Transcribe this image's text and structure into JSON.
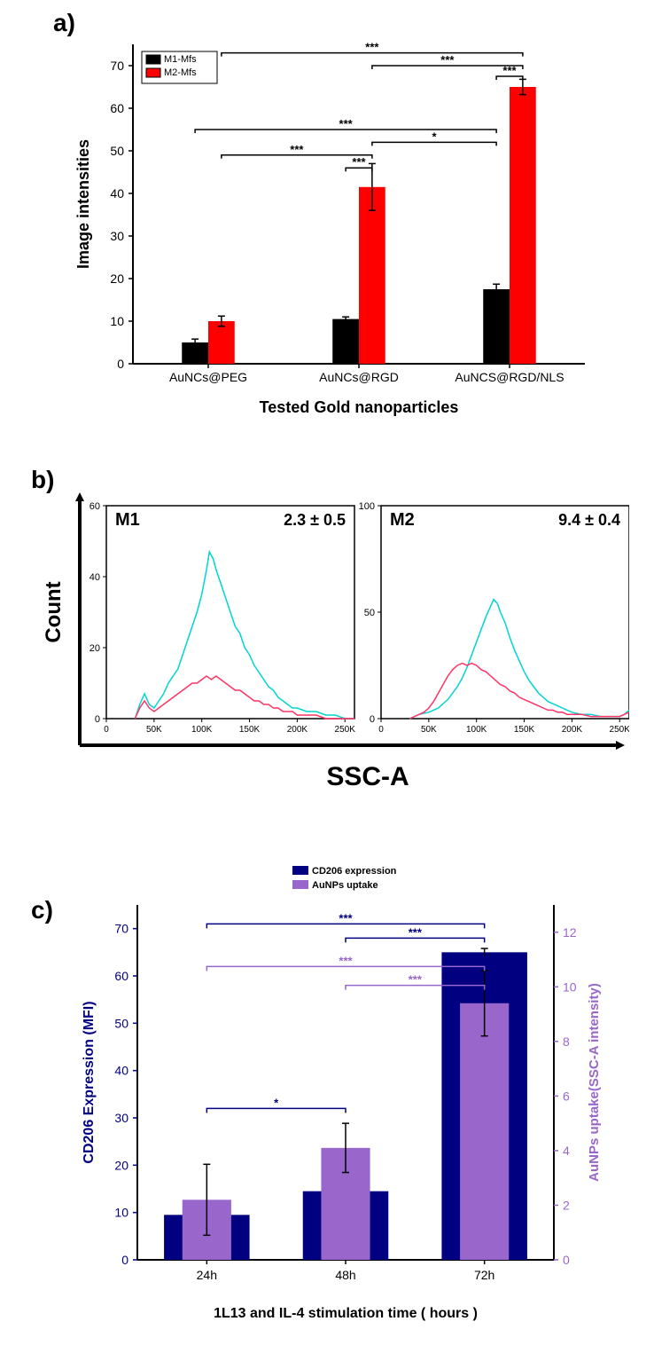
{
  "panels": {
    "a": {
      "label": "a)"
    },
    "b": {
      "label": "b)"
    },
    "c": {
      "label": "c)"
    }
  },
  "chartA": {
    "type": "bar",
    "ylabel": "Image intensities",
    "xlabel": "Tested Gold nanoparticles",
    "categories": [
      "AuNCs@PEG",
      "AuNCs@RGD",
      "AuNCS@RGD/NLS"
    ],
    "series": [
      {
        "name": "M1-Mfs",
        "color": "#000000",
        "values": [
          5,
          10.5,
          17.5
        ],
        "errors": [
          0.8,
          0.5,
          1.2
        ]
      },
      {
        "name": "M2-Mfs",
        "color": "#ff0000",
        "values": [
          10,
          41.5,
          65
        ],
        "errors": [
          1.2,
          5.5,
          1.8
        ]
      }
    ],
    "ylim": [
      0,
      75
    ],
    "ytick_step": 10,
    "bar_width": 0.35,
    "significance": [
      {
        "from": 0,
        "fromSeries": 1,
        "to": 2,
        "toSeries": 1,
        "label": "***",
        "y": 73
      },
      {
        "from": 1,
        "fromSeries": 1,
        "to": 2,
        "toSeries": 1,
        "label": "***",
        "y": 70
      },
      {
        "from": 2,
        "fromSeries": 0,
        "to": 2,
        "toSeries": 1,
        "label": "***",
        "y": 67.5
      },
      {
        "from": 0,
        "fromSeries": 0,
        "to": 2,
        "toSeries": 0,
        "label": "***",
        "y": 55
      },
      {
        "from": 1,
        "fromSeries": 1,
        "to": 2,
        "toSeries": 0,
        "label": "*",
        "y": 52
      },
      {
        "from": 0,
        "fromSeries": 1,
        "to": 1,
        "toSeries": 1,
        "label": "***",
        "y": 49
      },
      {
        "from": 1,
        "fromSeries": 0,
        "to": 1,
        "toSeries": 1,
        "label": "***",
        "y": 46
      }
    ]
  },
  "chartB": {
    "ylabel": "Count",
    "xlabel": "SSC-A",
    "subplots": [
      {
        "title": "M1",
        "stat": "2.3 ± 0.5",
        "xlim": [
          0,
          260
        ],
        "ylim": [
          0,
          60
        ],
        "xticks": [
          0,
          50,
          100,
          150,
          200,
          250
        ],
        "xtickLabels": [
          "0",
          "50K",
          "100K",
          "150K",
          "200K",
          "250K"
        ],
        "yticks": [
          0,
          20,
          40,
          60
        ],
        "lines": [
          {
            "color": "#00d4d4",
            "data": [
              [
                30,
                0
              ],
              [
                35,
                4
              ],
              [
                40,
                7
              ],
              [
                45,
                4
              ],
              [
                50,
                3
              ],
              [
                55,
                5
              ],
              [
                60,
                7
              ],
              [
                65,
                10
              ],
              [
                70,
                12
              ],
              [
                75,
                14
              ],
              [
                80,
                18
              ],
              [
                85,
                22
              ],
              [
                90,
                26
              ],
              [
                95,
                30
              ],
              [
                100,
                35
              ],
              [
                105,
                42
              ],
              [
                108,
                47
              ],
              [
                112,
                45
              ],
              [
                115,
                42
              ],
              [
                120,
                38
              ],
              [
                125,
                34
              ],
              [
                130,
                30
              ],
              [
                135,
                26
              ],
              [
                140,
                24
              ],
              [
                145,
                20
              ],
              [
                150,
                18
              ],
              [
                155,
                15
              ],
              [
                160,
                13
              ],
              [
                165,
                11
              ],
              [
                170,
                9
              ],
              [
                175,
                8
              ],
              [
                180,
                6
              ],
              [
                185,
                5
              ],
              [
                190,
                4
              ],
              [
                195,
                3
              ],
              [
                200,
                3
              ],
              [
                210,
                2
              ],
              [
                220,
                2
              ],
              [
                230,
                1
              ],
              [
                240,
                1
              ],
              [
                250,
                0
              ],
              [
                260,
                0
              ]
            ]
          },
          {
            "color": "#ff3366",
            "data": [
              [
                30,
                0
              ],
              [
                35,
                3
              ],
              [
                40,
                5
              ],
              [
                45,
                3
              ],
              [
                50,
                2
              ],
              [
                55,
                3
              ],
              [
                60,
                4
              ],
              [
                65,
                5
              ],
              [
                70,
                6
              ],
              [
                75,
                7
              ],
              [
                80,
                8
              ],
              [
                85,
                9
              ],
              [
                90,
                10
              ],
              [
                95,
                10
              ],
              [
                100,
                11
              ],
              [
                105,
                12
              ],
              [
                110,
                11
              ],
              [
                115,
                12
              ],
              [
                120,
                11
              ],
              [
                125,
                10
              ],
              [
                130,
                9
              ],
              [
                135,
                8
              ],
              [
                140,
                8
              ],
              [
                145,
                7
              ],
              [
                150,
                6
              ],
              [
                155,
                5
              ],
              [
                160,
                5
              ],
              [
                165,
                4
              ],
              [
                170,
                4
              ],
              [
                175,
                3
              ],
              [
                180,
                3
              ],
              [
                185,
                2
              ],
              [
                190,
                2
              ],
              [
                195,
                2
              ],
              [
                200,
                1
              ],
              [
                210,
                1
              ],
              [
                220,
                1
              ],
              [
                230,
                0
              ],
              [
                240,
                0
              ],
              [
                250,
                0
              ],
              [
                260,
                0
              ]
            ]
          }
        ]
      },
      {
        "title": "M2",
        "stat": "9.4 ± 0.4",
        "xlim": [
          0,
          260
        ],
        "ylim": [
          0,
          100
        ],
        "xticks": [
          0,
          50,
          100,
          150,
          200,
          250
        ],
        "xtickLabels": [
          "0",
          "50K",
          "100K",
          "150K",
          "200K",
          "250K"
        ],
        "yticks": [
          0,
          50,
          100
        ],
        "lines": [
          {
            "color": "#00d4d4",
            "data": [
              [
                30,
                0
              ],
              [
                40,
                2
              ],
              [
                50,
                3
              ],
              [
                55,
                4
              ],
              [
                60,
                5
              ],
              [
                65,
                7
              ],
              [
                70,
                9
              ],
              [
                75,
                12
              ],
              [
                80,
                15
              ],
              [
                85,
                19
              ],
              [
                90,
                24
              ],
              [
                95,
                30
              ],
              [
                100,
                36
              ],
              [
                105,
                42
              ],
              [
                110,
                48
              ],
              [
                115,
                53
              ],
              [
                118,
                56
              ],
              [
                122,
                54
              ],
              [
                125,
                50
              ],
              [
                130,
                45
              ],
              [
                135,
                38
              ],
              [
                140,
                32
              ],
              [
                145,
                27
              ],
              [
                150,
                22
              ],
              [
                155,
                18
              ],
              [
                160,
                15
              ],
              [
                165,
                12
              ],
              [
                170,
                10
              ],
              [
                175,
                8
              ],
              [
                180,
                7
              ],
              [
                185,
                6
              ],
              [
                190,
                5
              ],
              [
                195,
                4
              ],
              [
                200,
                3
              ],
              [
                210,
                2
              ],
              [
                220,
                2
              ],
              [
                230,
                1
              ],
              [
                240,
                1
              ],
              [
                250,
                1
              ],
              [
                255,
                2
              ],
              [
                260,
                4
              ]
            ]
          },
          {
            "color": "#ff3366",
            "data": [
              [
                30,
                0
              ],
              [
                40,
                2
              ],
              [
                45,
                3
              ],
              [
                50,
                5
              ],
              [
                55,
                8
              ],
              [
                60,
                12
              ],
              [
                65,
                16
              ],
              [
                70,
                20
              ],
              [
                75,
                23
              ],
              [
                80,
                25
              ],
              [
                85,
                26
              ],
              [
                90,
                25
              ],
              [
                95,
                26
              ],
              [
                100,
                25
              ],
              [
                105,
                23
              ],
              [
                110,
                22
              ],
              [
                115,
                20
              ],
              [
                120,
                18
              ],
              [
                125,
                16
              ],
              [
                130,
                15
              ],
              [
                135,
                13
              ],
              [
                140,
                12
              ],
              [
                145,
                10
              ],
              [
                150,
                9
              ],
              [
                155,
                8
              ],
              [
                160,
                7
              ],
              [
                165,
                6
              ],
              [
                170,
                5
              ],
              [
                175,
                4
              ],
              [
                180,
                4
              ],
              [
                185,
                3
              ],
              [
                190,
                3
              ],
              [
                195,
                2
              ],
              [
                200,
                2
              ],
              [
                210,
                2
              ],
              [
                220,
                1
              ],
              [
                230,
                1
              ],
              [
                240,
                1
              ],
              [
                250,
                1
              ],
              [
                255,
                2
              ],
              [
                260,
                3
              ]
            ]
          }
        ]
      }
    ]
  },
  "chartC": {
    "type": "bar",
    "ylabel_left": "CD206 Expression (MFI)",
    "ylabel_right": "AuNPs uptake(SSC-A intensity)",
    "xlabel": "1L13 and IL-4 stimulation time ( hours )",
    "categories": [
      "24h",
      "48h",
      "72h"
    ],
    "series": [
      {
        "name": "CD206 expression",
        "color": "#000080",
        "values": [
          9.5,
          14.5,
          65
        ],
        "errors": [
          0,
          0,
          0.8
        ],
        "axis": "left"
      },
      {
        "name": "AuNPs uptake",
        "color": "#9966cc",
        "values": [
          2.2,
          4.1,
          9.4
        ],
        "errors": [
          1.3,
          0.9,
          1.2
        ],
        "axis": "right"
      }
    ],
    "ylim_left": [
      0,
      75
    ],
    "ytick_step_left": 10,
    "ylim_right": [
      0,
      13
    ],
    "ytick_step_right": 2,
    "significance": [
      {
        "color": "#000080",
        "from": 0,
        "to": 2,
        "label": "***",
        "y": 71
      },
      {
        "color": "#000080",
        "from": 1,
        "to": 2,
        "label": "***",
        "y": 68
      },
      {
        "color": "#9966cc",
        "from": 0,
        "to": 2,
        "label": "***",
        "y": 62
      },
      {
        "color": "#9966cc",
        "from": 1,
        "to": 2,
        "label": "***",
        "y": 58
      },
      {
        "color": "#000080",
        "from": 0,
        "to": 1,
        "label": "*",
        "y": 32
      }
    ]
  }
}
